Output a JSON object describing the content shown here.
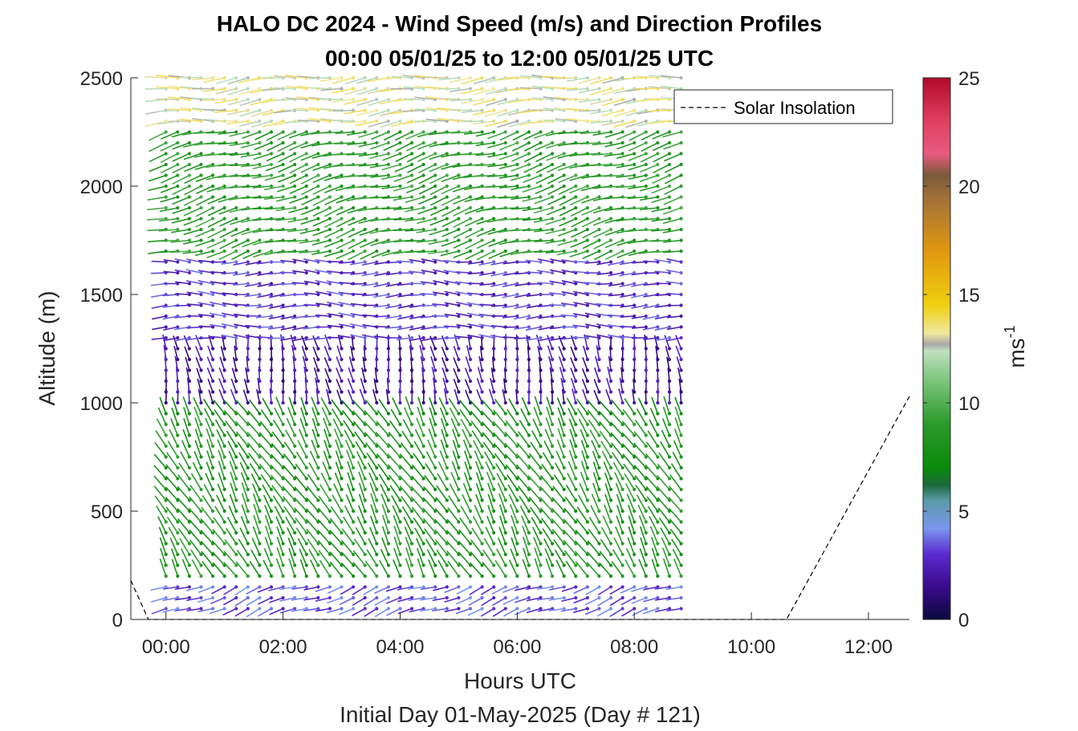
{
  "chart_data": {
    "type": "quiver",
    "title": "HALO DC 2024 - Wind Speed (m/s) and Direction Profiles",
    "subtitle": "00:00 05/01/25 to 12:00 05/01/25  UTC",
    "xlabel": "Hours UTC",
    "xlabel2": "Initial Day 01-May-2025 (Day # 121)",
    "ylabel": "Altitude (m)",
    "xlim": [
      -0.6,
      12.7
    ],
    "ylim": [
      0,
      2500
    ],
    "x_ticks": [
      "00:00",
      "02:00",
      "04:00",
      "06:00",
      "08:00",
      "10:00",
      "12:00"
    ],
    "x_tick_values": [
      0,
      2,
      4,
      6,
      8,
      10,
      12
    ],
    "y_ticks": [
      "0",
      "500",
      "1000",
      "1500",
      "2000",
      "2500"
    ],
    "y_tick_values": [
      0,
      500,
      1000,
      1500,
      2000,
      2500
    ],
    "colorbar": {
      "label": "ms",
      "label_superscript": "-1",
      "range": [
        0,
        25
      ],
      "ticks": [
        "0",
        "5",
        "10",
        "15",
        "20",
        "25"
      ],
      "tick_values": [
        0,
        5,
        10,
        15,
        20,
        25
      ],
      "colors": [
        [
          0,
          "#0a0a3c"
        ],
        [
          1.5,
          "#3a0a8c"
        ],
        [
          3,
          "#5a2ad0"
        ],
        [
          4.2,
          "#7a96ee"
        ],
        [
          5.5,
          "#5a9aa8"
        ],
        [
          6.2,
          "#1a6a3a"
        ],
        [
          7,
          "#0a8a0a"
        ],
        [
          9,
          "#2a9a2a"
        ],
        [
          11,
          "#7ac47a"
        ],
        [
          12.4,
          "#c0e0c0"
        ],
        [
          12.7,
          "#a8a8a8"
        ],
        [
          13.2,
          "#f0e8a0"
        ],
        [
          14.5,
          "#f0d010"
        ],
        [
          17,
          "#e09810"
        ],
        [
          19.5,
          "#a0703a"
        ],
        [
          20.5,
          "#7a5a3a"
        ],
        [
          21.5,
          "#e85a80"
        ],
        [
          23,
          "#e04060"
        ],
        [
          25,
          "#b00a2a"
        ]
      ]
    },
    "legend": {
      "entries": [
        "Solar Insolation"
      ],
      "location": "top-right"
    },
    "solar_insolation": {
      "x": [
        -0.6,
        -0.3,
        10.6,
        12.7
      ],
      "y": [
        180,
        0,
        0,
        1030
      ]
    },
    "wind_profiles": {
      "times": [
        0.0,
        0.2,
        0.4,
        0.6,
        0.8,
        1.0,
        1.2,
        1.4,
        1.6,
        1.8,
        2.0,
        2.2,
        2.4,
        2.6,
        2.8,
        3.0,
        3.2,
        3.4,
        3.6,
        3.8,
        4.0,
        4.2,
        4.4,
        4.6,
        4.8,
        5.0,
        5.2,
        5.4,
        5.6,
        5.8,
        6.0,
        6.2,
        6.4,
        6.6,
        6.8,
        7.0,
        7.2,
        7.4,
        7.6,
        7.8,
        8.0,
        8.2,
        8.4,
        8.6,
        8.8
      ],
      "altitudes": [
        50,
        100,
        150,
        200,
        250,
        300,
        350,
        400,
        450,
        500,
        550,
        600,
        650,
        700,
        750,
        800,
        850,
        900,
        950,
        1000,
        1050,
        1100,
        1150,
        1200,
        1250,
        1300,
        1350,
        1400,
        1450,
        1500,
        1550,
        1600,
        1650,
        1700,
        1750,
        1800,
        1850,
        1900,
        1950,
        2000,
        2050,
        2100,
        2150,
        2200,
        2250,
        2300,
        2350,
        2400,
        2450,
        2500
      ],
      "description_layers": [
        {
          "alt_range": [
            0,
            200
          ],
          "speed": 3.5,
          "direction_deg": 250
        },
        {
          "alt_range": [
            200,
            1000
          ],
          "speed": 8.5,
          "direction_deg": 330
        },
        {
          "alt_range": [
            1000,
            1300
          ],
          "speed": 3.0,
          "direction_deg": 350
        },
        {
          "alt_range": [
            1300,
            1700
          ],
          "speed": 3.0,
          "direction_deg": 270
        },
        {
          "alt_range": [
            1700,
            2300
          ],
          "speed": 9.0,
          "direction_deg": 255
        },
        {
          "alt_range": [
            2300,
            2500
          ],
          "speed": 13.0,
          "direction_deg": 265
        }
      ]
    }
  }
}
